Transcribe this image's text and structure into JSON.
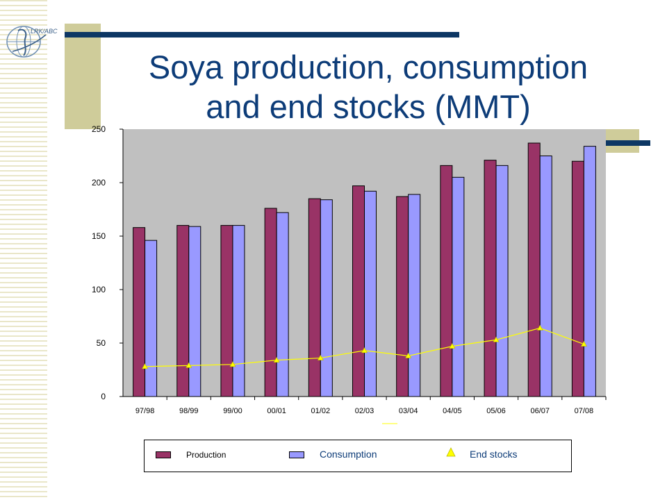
{
  "slide": {
    "title_line1": "Soya production, consumption",
    "title_line2": "and end stocks (MMT)",
    "logo_text": "LRK/ABC"
  },
  "colors": {
    "production": "#993366",
    "consumption": "#9999ff",
    "end_stocks": "#ffff00",
    "title": "#0d3c78",
    "accent_bar": "#0d3764",
    "accent_tan": "#cfcc9a",
    "plot_bg": "#c0c0c0"
  },
  "legend": {
    "production": "Production",
    "consumption": "Consumption",
    "end_stocks": "End stocks"
  },
  "chart_data": {
    "type": "bar",
    "title": "Soya production, consumption and end stocks (MMT)",
    "categories": [
      "97/98",
      "98/99",
      "99/00",
      "00/01",
      "01/02",
      "02/03",
      "03/04",
      "04/05",
      "05/06",
      "06/07",
      "07/08"
    ],
    "series": [
      {
        "name": "Production",
        "type": "bar",
        "values": [
          158,
          160,
          160,
          176,
          185,
          197,
          187,
          216,
          221,
          237,
          220
        ]
      },
      {
        "name": "Consumption",
        "type": "bar",
        "values": [
          146,
          159,
          160,
          172,
          184,
          192,
          189,
          205,
          216,
          225,
          234
        ]
      },
      {
        "name": "End stocks",
        "type": "line",
        "values": [
          28,
          29,
          30,
          34,
          36,
          43,
          38,
          47,
          53,
          64,
          49
        ]
      }
    ],
    "ylim": [
      0,
      250
    ],
    "yticks": [
      0,
      50,
      100,
      150,
      200,
      250
    ],
    "xlabel": "",
    "ylabel": "",
    "grid": false,
    "legend_position": "bottom"
  }
}
